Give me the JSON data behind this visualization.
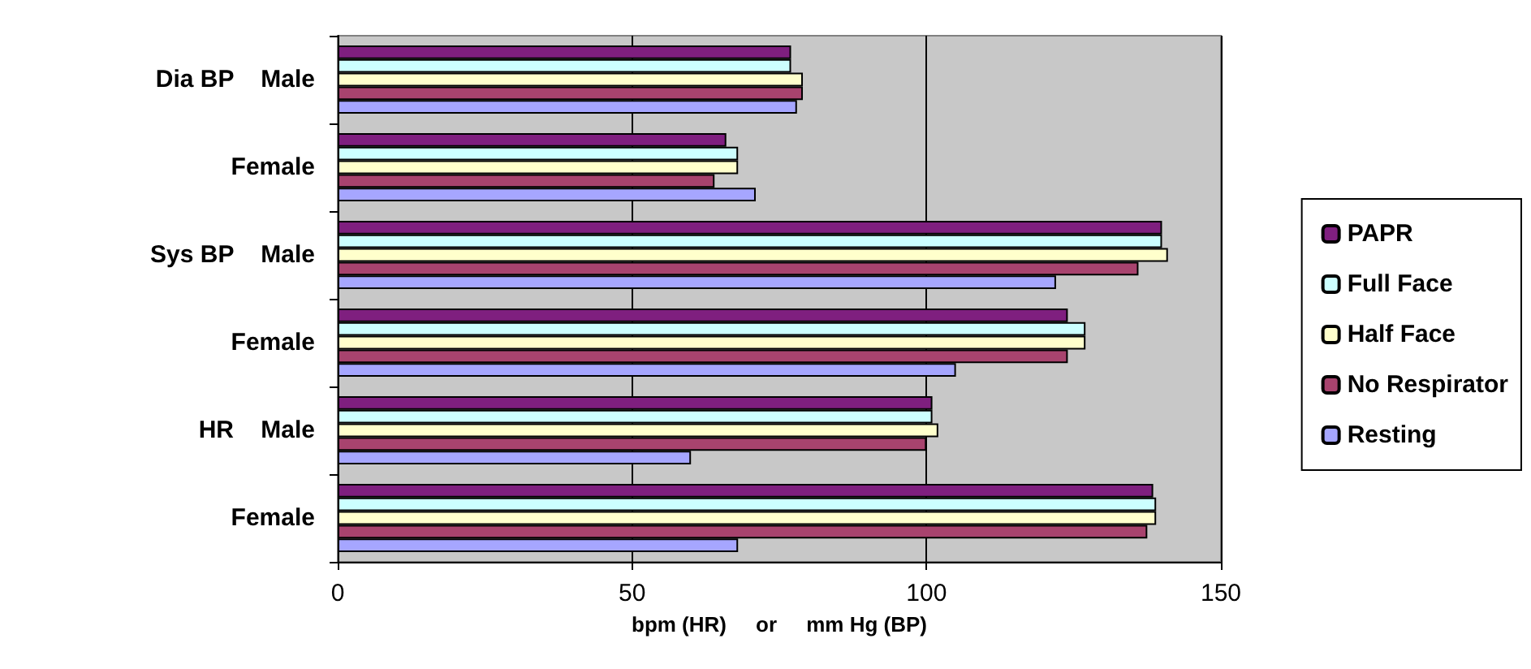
{
  "chart_data": {
    "type": "bar",
    "orientation": "horizontal",
    "categories": [
      "Dia BP    Male",
      "Female",
      "Sys BP    Male",
      "Female",
      "HR    Male",
      "Female"
    ],
    "series": [
      {
        "name": "PAPR",
        "color": "#7f1f7f",
        "values": [
          77,
          66,
          140,
          124,
          101,
          138.5
        ]
      },
      {
        "name": "Full Face",
        "color": "#ccffff",
        "values": [
          77,
          68,
          140,
          127,
          101,
          139
        ]
      },
      {
        "name": "Half Face",
        "color": "#ffffcc",
        "values": [
          79,
          68,
          141,
          127,
          102,
          139
        ]
      },
      {
        "name": "No Respirator",
        "color": "#a8436e",
        "values": [
          79,
          64,
          136,
          124,
          100,
          137.5
        ]
      },
      {
        "name": "Resting",
        "color": "#a6a6ff",
        "values": [
          78,
          71,
          122,
          105,
          60,
          68
        ]
      }
    ],
    "xlabel": "bpm (HR)     or     mm Hg (BP)",
    "xlim": [
      0,
      150
    ],
    "xticks": [
      0,
      50,
      100,
      150
    ],
    "grid": "x",
    "legend": "right"
  }
}
